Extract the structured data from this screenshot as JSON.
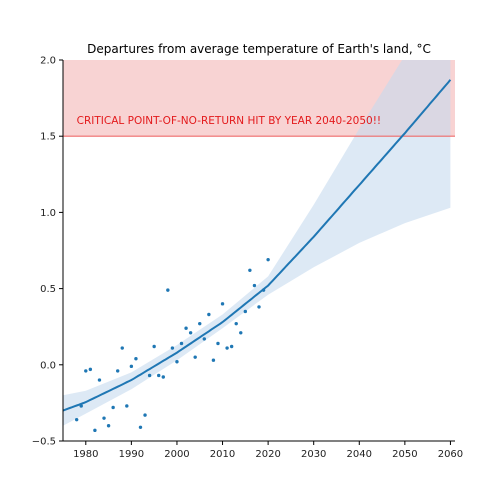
{
  "chart_data": {
    "type": "scatter",
    "title": "Departures from average temperature of Earth's land, °C",
    "xlabel": "",
    "ylabel": "",
    "xlim": [
      1975,
      2061
    ],
    "ylim": [
      -0.5,
      2.0
    ],
    "x_ticks": [
      1980,
      1990,
      2000,
      2010,
      2020,
      2030,
      2040,
      2050,
      2060
    ],
    "y_ticks": [
      -0.5,
      0.0,
      0.5,
      1.0,
      1.5,
      2.0
    ],
    "y_tick_labels": [
      "−0.5",
      "0.0",
      "0.5",
      "1.0",
      "1.5",
      "2.0"
    ],
    "grid": false,
    "colors": {
      "points": "#1f77b4",
      "fit_line": "#1f77b4",
      "confidence_band": "#c6dbef",
      "critical_zone": "#f4b6b6",
      "threshold_line": "#ef6a6a",
      "annotation": "#e31a1c"
    },
    "threshold": 1.5,
    "annotation": {
      "text": "CRITICAL POINT-OF-NO-RETURN HIT BY YEAR 2040-2050!!",
      "x": 1978,
      "y": 1.58
    },
    "points": [
      [
        1978,
        -0.36
      ],
      [
        1979,
        -0.27
      ],
      [
        1980,
        -0.04
      ],
      [
        1981,
        -0.03
      ],
      [
        1982,
        -0.43
      ],
      [
        1983,
        -0.1
      ],
      [
        1984,
        -0.35
      ],
      [
        1985,
        -0.4
      ],
      [
        1986,
        -0.28
      ],
      [
        1987,
        -0.04
      ],
      [
        1988,
        0.11
      ],
      [
        1989,
        -0.27
      ],
      [
        1990,
        -0.01
      ],
      [
        1991,
        0.04
      ],
      [
        1992,
        -0.41
      ],
      [
        1993,
        -0.33
      ],
      [
        1994,
        -0.07
      ],
      [
        1995,
        0.12
      ],
      [
        1996,
        -0.07
      ],
      [
        1997,
        -0.08
      ],
      [
        1998,
        0.49
      ],
      [
        1999,
        0.11
      ],
      [
        2000,
        0.02
      ],
      [
        2001,
        0.14
      ],
      [
        2002,
        0.24
      ],
      [
        2003,
        0.21
      ],
      [
        2004,
        0.05
      ],
      [
        2005,
        0.27
      ],
      [
        2006,
        0.17
      ],
      [
        2007,
        0.33
      ],
      [
        2008,
        0.03
      ],
      [
        2009,
        0.14
      ],
      [
        2010,
        0.4
      ],
      [
        2011,
        0.11
      ],
      [
        2012,
        0.12
      ],
      [
        2013,
        0.27
      ],
      [
        2014,
        0.21
      ],
      [
        2015,
        0.35
      ],
      [
        2016,
        0.62
      ],
      [
        2017,
        0.52
      ],
      [
        2018,
        0.38
      ],
      [
        2019,
        0.49
      ],
      [
        2020,
        0.69
      ]
    ],
    "fit": {
      "type": "polynomial-2",
      "x": [
        1975,
        1980,
        1990,
        2000,
        2010,
        2020,
        2030,
        2040,
        2050,
        2060
      ],
      "y": [
        -0.3,
        -0.245,
        -0.1,
        0.08,
        0.28,
        0.52,
        0.84,
        1.18,
        1.52,
        1.87
      ],
      "band_lower": [
        -0.4,
        -0.32,
        -0.16,
        0.03,
        0.24,
        0.46,
        0.64,
        0.8,
        0.93,
        1.03
      ],
      "band_upper": [
        -0.2,
        -0.17,
        -0.05,
        0.13,
        0.33,
        0.58,
        1.05,
        1.55,
        2.03,
        2.6
      ]
    }
  }
}
